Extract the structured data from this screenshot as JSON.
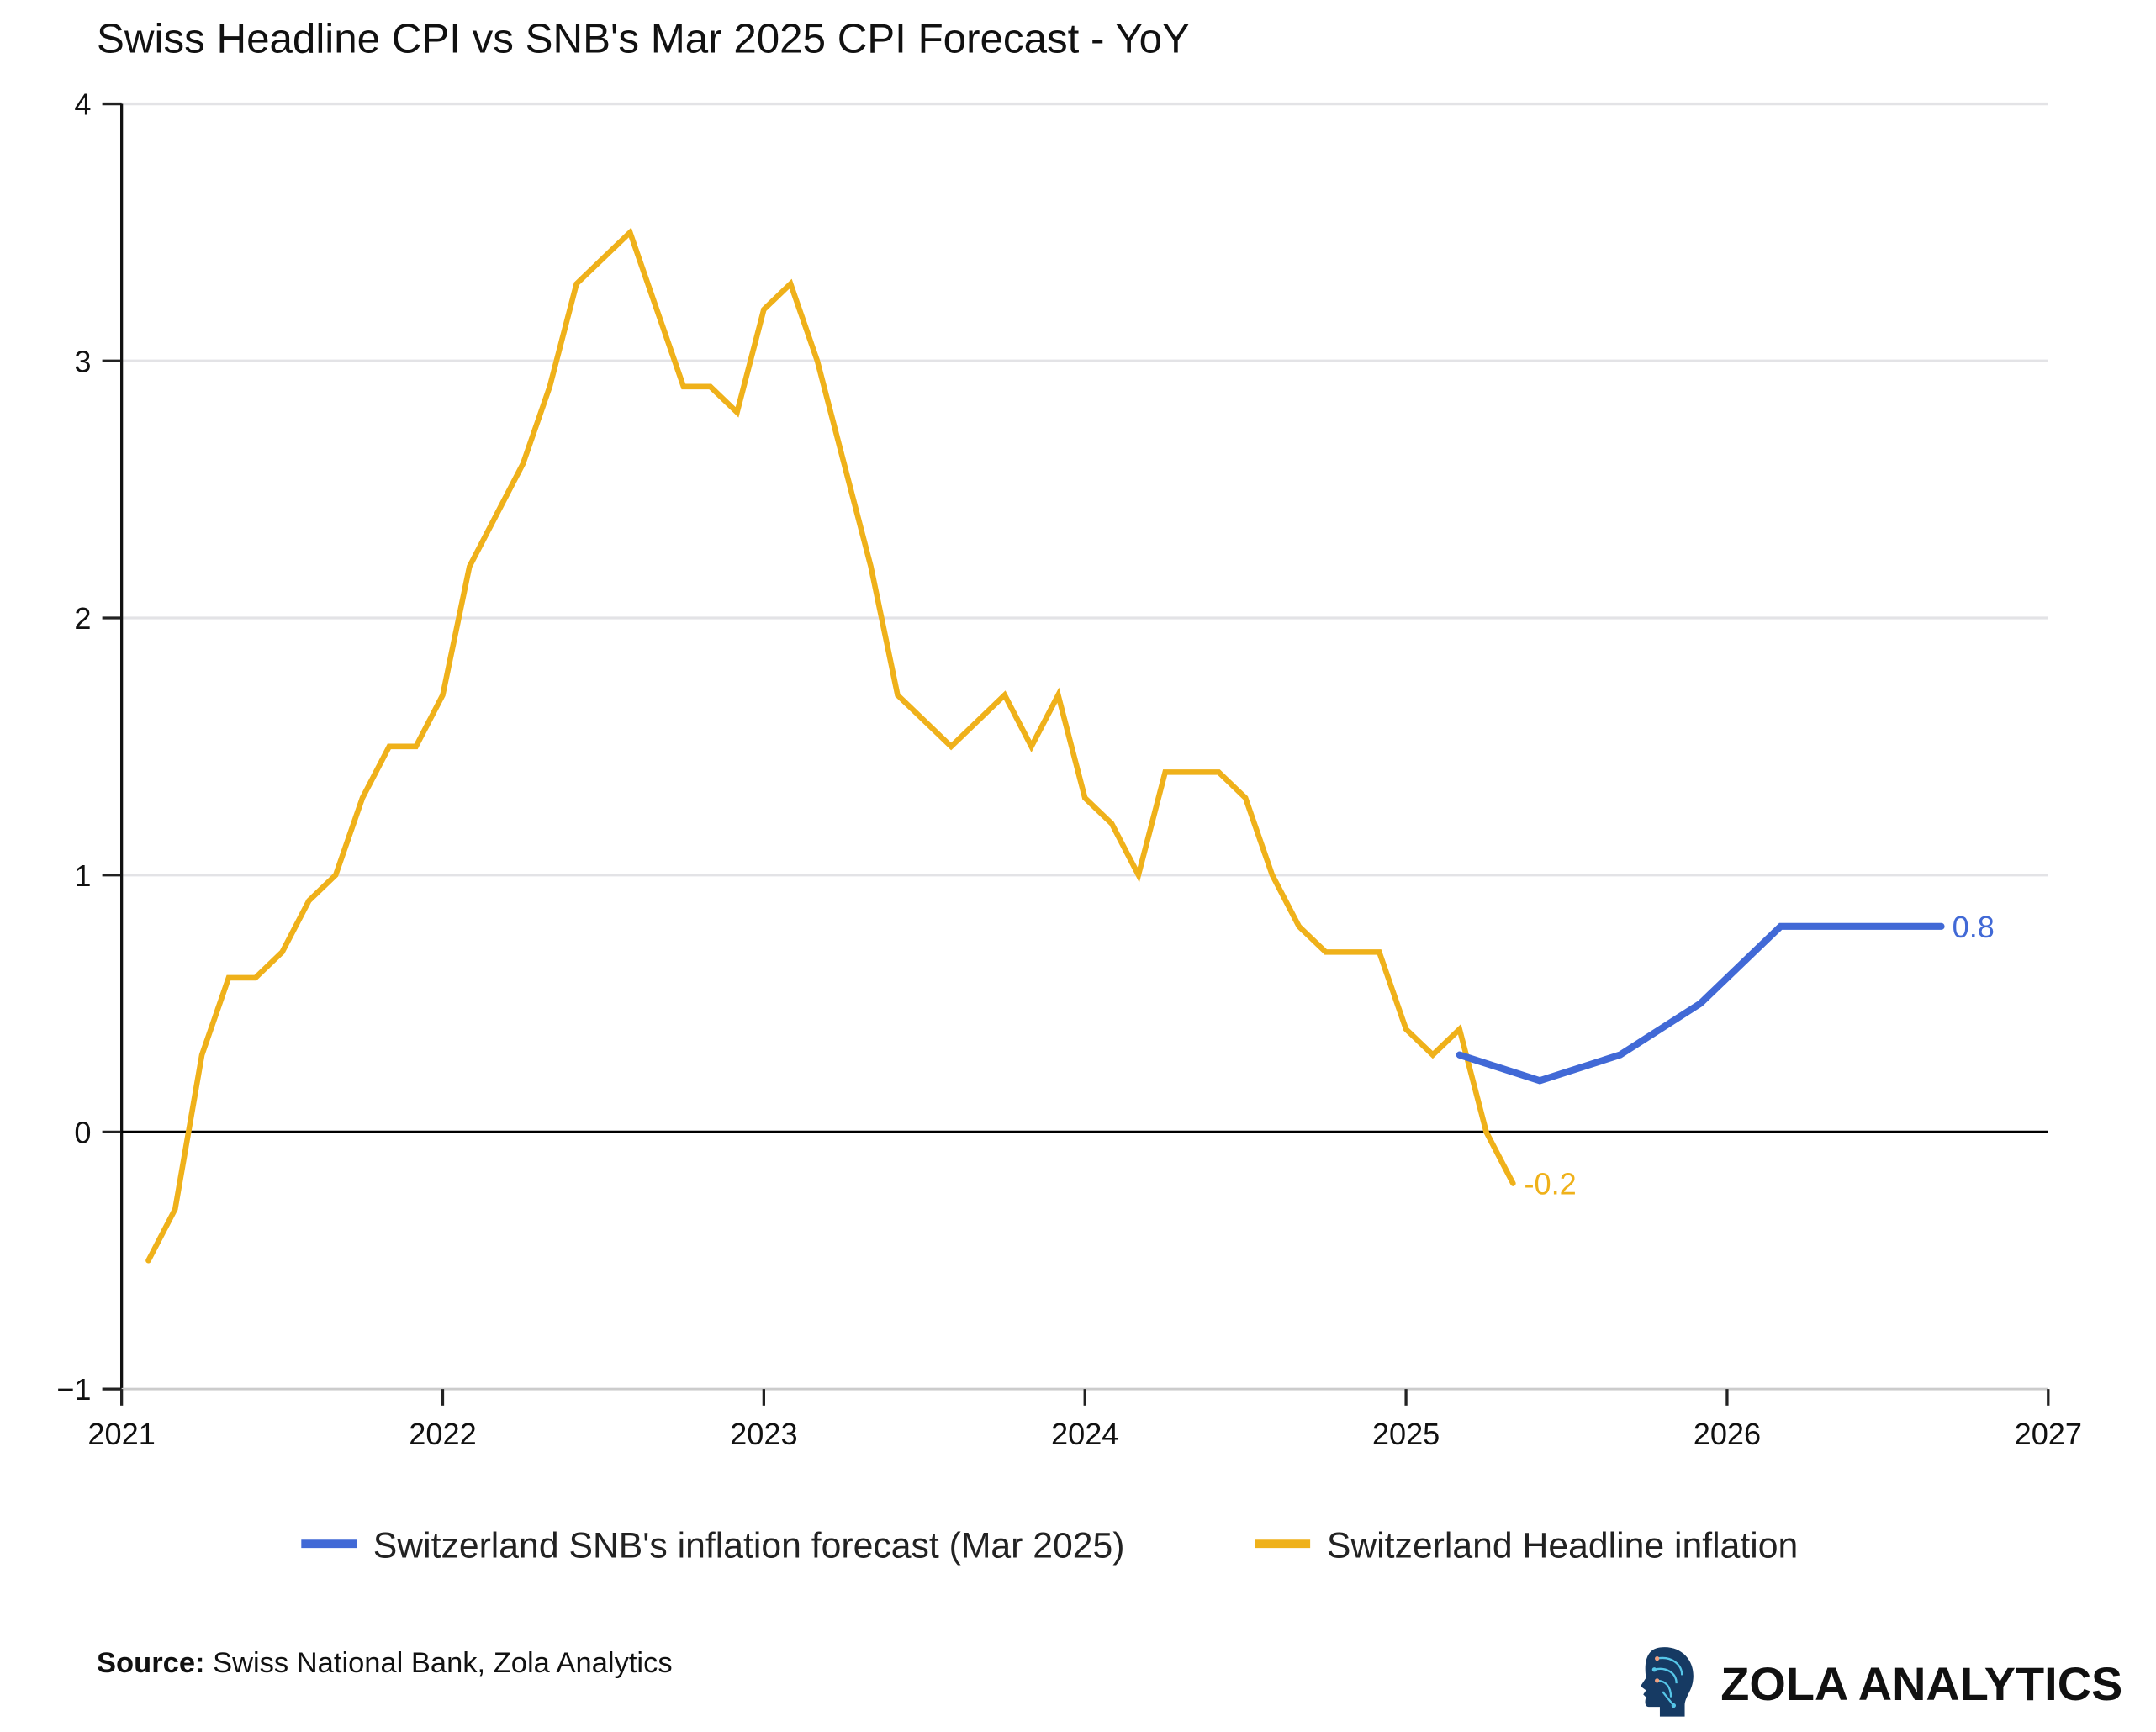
{
  "chart_data": {
    "type": "line",
    "title": "Swiss Headline CPI vs SNB's Mar 2025 CPI Forecast - YoY",
    "xlabel": "",
    "ylabel": "",
    "xlim": [
      2021,
      2027
    ],
    "ylim": [
      -1,
      4
    ],
    "x_ticks": [
      "2021",
      "2022",
      "2023",
      "2024",
      "2025",
      "2026",
      "2027"
    ],
    "y_ticks": [
      "4",
      "3",
      "2",
      "1",
      "0",
      "−1"
    ],
    "grid": "horizontal",
    "legend_position": "bottom",
    "series": [
      {
        "name": "Switzerland Headline inflation",
        "color": "#EFB11A",
        "end_label": "-0.2",
        "x": [
          "2021-01",
          "2021-02",
          "2021-03",
          "2021-04",
          "2021-05",
          "2021-06",
          "2021-07",
          "2021-08",
          "2021-09",
          "2021-10",
          "2021-11",
          "2021-12",
          "2022-01",
          "2022-02",
          "2022-03",
          "2022-04",
          "2022-05",
          "2022-06",
          "2022-07",
          "2022-08",
          "2022-09",
          "2022-10",
          "2022-11",
          "2022-12",
          "2023-01",
          "2023-02",
          "2023-03",
          "2023-04",
          "2023-05",
          "2023-06",
          "2023-07",
          "2023-08",
          "2023-09",
          "2023-10",
          "2023-11",
          "2023-12",
          "2024-01",
          "2024-02",
          "2024-03",
          "2024-04",
          "2024-05",
          "2024-06",
          "2024-07",
          "2024-08",
          "2024-09",
          "2024-10",
          "2024-11",
          "2024-12",
          "2025-01",
          "2025-02",
          "2025-03",
          "2025-04"
        ],
        "values": [
          -0.5,
          -0.3,
          0.3,
          0.6,
          0.6,
          0.7,
          0.9,
          1.0,
          1.3,
          1.5,
          1.5,
          1.7,
          2.2,
          2.4,
          2.6,
          2.9,
          3.3,
          3.4,
          3.5,
          3.2,
          2.9,
          2.9,
          2.8,
          3.2,
          3.3,
          3.0,
          2.6,
          2.2,
          1.7,
          1.6,
          1.5,
          1.6,
          1.7,
          1.5,
          1.7,
          1.3,
          1.2,
          1.0,
          1.4,
          1.4,
          1.4,
          1.3,
          1.0,
          0.8,
          0.7,
          0.7,
          0.7,
          0.4,
          0.3,
          0.4,
          0.0,
          -0.2
        ]
      },
      {
        "name": "Switzerland SNB's inflation forecast (Mar 2025)",
        "color": "#4169D6",
        "end_label": "0.8",
        "x": [
          "2025-Q1",
          "2025-Q2",
          "2025-Q3",
          "2025-Q4",
          "2026-Q1",
          "2026-Q2",
          "2026-Q3"
        ],
        "values": [
          0.3,
          0.2,
          0.3,
          0.5,
          0.8,
          0.8,
          0.8
        ]
      }
    ],
    "legend": [
      {
        "label": "Switzerland SNB's inflation forecast (Mar 2025)",
        "color": "#4169D6"
      },
      {
        "label": "Switzerland Headline inflation",
        "color": "#EFB11A"
      }
    ]
  },
  "footer": {
    "source_label": "Source:",
    "source_text": " Swiss National Bank, Zola Analytics",
    "brand": "ZOLA ANALYTICS",
    "logo_icon": "brain-head-icon"
  }
}
